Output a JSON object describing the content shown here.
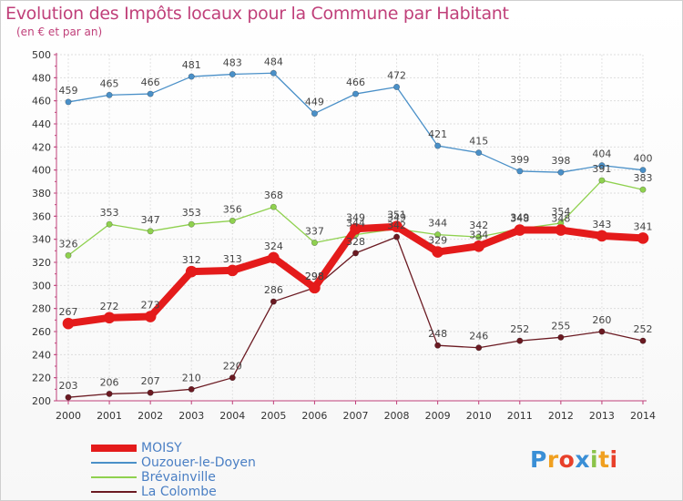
{
  "chart_data": {
    "type": "line",
    "title": "Evolution des Impôts locaux pour la Commune par Habitant",
    "subtitle": "(en € et par an)",
    "x": [
      "2000",
      "2001",
      "2002",
      "2003",
      "2004",
      "2005",
      "2006",
      "2007",
      "2008",
      "2009",
      "2010",
      "2011",
      "2012",
      "2013",
      "2014"
    ],
    "ylim": [
      200,
      500
    ],
    "yticks": [
      200,
      220,
      240,
      260,
      280,
      300,
      320,
      340,
      360,
      380,
      400,
      420,
      440,
      460,
      480,
      500
    ],
    "grid": true,
    "legend_position": "bottom-left",
    "series": [
      {
        "name": "Ouzouer-le-Doyen",
        "color": "#4a90c8",
        "values": [
          459,
          465,
          466,
          481,
          483,
          484,
          449,
          466,
          472,
          421,
          415,
          399,
          398,
          404,
          400
        ]
      },
      {
        "name": "Brévainville",
        "color": "#8fd14f",
        "values": [
          326,
          353,
          347,
          353,
          356,
          368,
          337,
          344,
          349,
          344,
          342,
          349,
          354,
          391,
          383
        ]
      },
      {
        "name": "La Colombe",
        "color": "#6b1a22",
        "values": [
          203,
          206,
          207,
          210,
          220,
          286,
          298,
          328,
          342,
          248,
          246,
          252,
          255,
          260,
          252
        ]
      },
      {
        "name": "MOISY",
        "color": "#e41b1b",
        "values": [
          267,
          272,
          273,
          312,
          313,
          324,
          298,
          349,
          351,
          329,
          334,
          348,
          348,
          343,
          341
        ]
      }
    ]
  },
  "legend": [
    {
      "name": "MOISY",
      "color": "#e41b1b"
    },
    {
      "name": "Ouzouer-le-Doyen",
      "color": "#4a90c8"
    },
    {
      "name": "Brévainville",
      "color": "#8fd14f"
    },
    {
      "name": "La Colombe",
      "color": "#6b1a22"
    }
  ],
  "brand": {
    "letters": [
      "P",
      "r",
      "o",
      "x",
      "i",
      "t",
      "i"
    ],
    "colors": [
      "#3a8fd6",
      "#f0a020",
      "#e8402a",
      "#3a8fd6",
      "#8bc34a",
      "#f0a020",
      "#e8402a"
    ]
  }
}
